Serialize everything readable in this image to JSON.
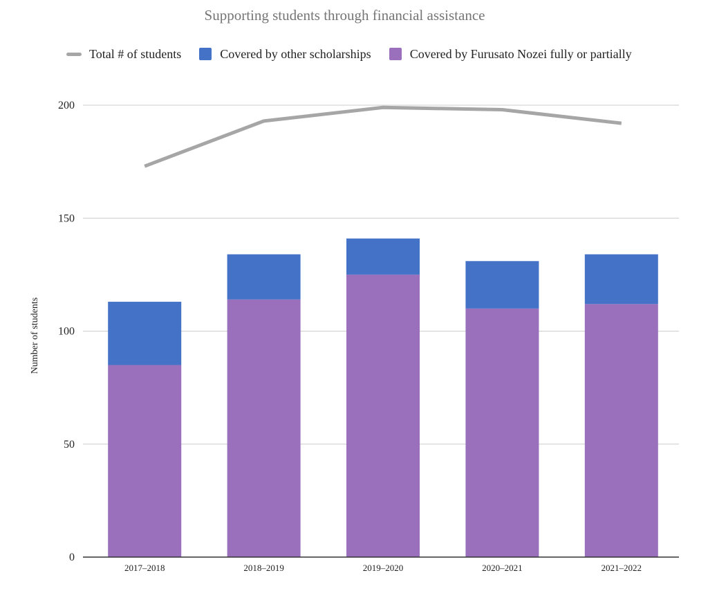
{
  "chart_data": {
    "type": "bar",
    "title": "Supporting students through financial assistance",
    "ylabel": "Number of students",
    "xlabel": "",
    "ylim": [
      0,
      200
    ],
    "yticks": [
      0,
      50,
      100,
      150,
      200
    ],
    "grid": true,
    "legend_position": "top",
    "stacked": true,
    "categories": [
      "2017–2018",
      "2018–2019",
      "2019–2020",
      "2020–2021",
      "2021–2022"
    ],
    "series": [
      {
        "name": "Covered by Furusato Nozei fully or partially",
        "kind": "bar",
        "color": "#9a6fbc",
        "values": [
          85,
          114,
          125,
          110,
          112
        ]
      },
      {
        "name": "Covered by other scholarships",
        "kind": "bar",
        "color": "#4472c7",
        "values": [
          28,
          20,
          16,
          21,
          22
        ]
      },
      {
        "name": "Total # of students",
        "kind": "line",
        "color": "#a6a6a6",
        "values": [
          173,
          193,
          199,
          198,
          192
        ]
      }
    ]
  }
}
